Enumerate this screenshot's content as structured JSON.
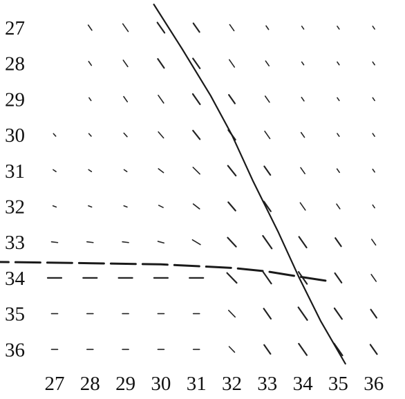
{
  "chart_data": {
    "type": "vector-field",
    "x_ticks": [
      "27",
      "28",
      "29",
      "30",
      "31",
      "32",
      "33",
      "34",
      "35",
      "36"
    ],
    "y_ticks": [
      "27",
      "28",
      "29",
      "30",
      "31",
      "32",
      "33",
      "34",
      "35",
      "36"
    ],
    "grid": false,
    "columns_per_row": [
      [
        27,
        35
      ],
      [
        27,
        35
      ],
      [
        27,
        36
      ],
      [
        26,
        37
      ],
      [
        26,
        37
      ],
      [
        26,
        37
      ],
      [
        26,
        37
      ],
      [
        26,
        37
      ],
      [
        26,
        37
      ],
      [
        26,
        37
      ]
    ],
    "curves": [
      {
        "style": "solid",
        "points": [
          [
            29.8,
            26.35
          ],
          [
            30.6,
            27.6
          ],
          [
            31.4,
            28.9
          ],
          [
            32.0,
            30.0
          ],
          [
            32.6,
            31.3
          ],
          [
            33.3,
            32.7
          ],
          [
            33.9,
            34.0
          ],
          [
            34.5,
            35.2
          ],
          [
            35.2,
            36.4
          ]
        ]
      },
      {
        "style": "dashed",
        "points": [
          [
            25.0,
            33.55
          ],
          [
            27.5,
            33.58
          ],
          [
            30.0,
            33.62
          ],
          [
            32.0,
            33.72
          ],
          [
            33.0,
            33.82
          ],
          [
            34.0,
            33.98
          ],
          [
            34.8,
            34.1
          ]
        ]
      }
    ]
  }
}
